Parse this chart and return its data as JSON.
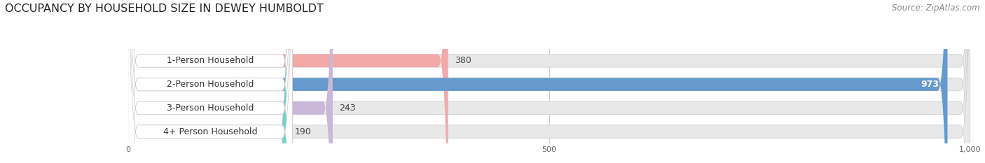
{
  "title": "OCCUPANCY BY HOUSEHOLD SIZE IN DEWEY HUMBOLDT",
  "source": "Source: ZipAtlas.com",
  "categories": [
    "1-Person Household",
    "2-Person Household",
    "3-Person Household",
    "4+ Person Household"
  ],
  "values": [
    380,
    973,
    243,
    190
  ],
  "bar_colors": [
    "#f4a8a8",
    "#6699cc",
    "#c9b8d8",
    "#7ecece"
  ],
  "label_colors": [
    "#444444",
    "#ffffff",
    "#444444",
    "#444444"
  ],
  "xlim_max": 1000,
  "xticks": [
    0,
    500,
    1000
  ],
  "xtick_labels": [
    "0",
    "500",
    "1,000"
  ],
  "background_color": "#ffffff",
  "bar_bg_color": "#e8e8e8",
  "title_fontsize": 11.5,
  "source_fontsize": 8.5,
  "label_fontsize": 9,
  "value_fontsize": 9
}
